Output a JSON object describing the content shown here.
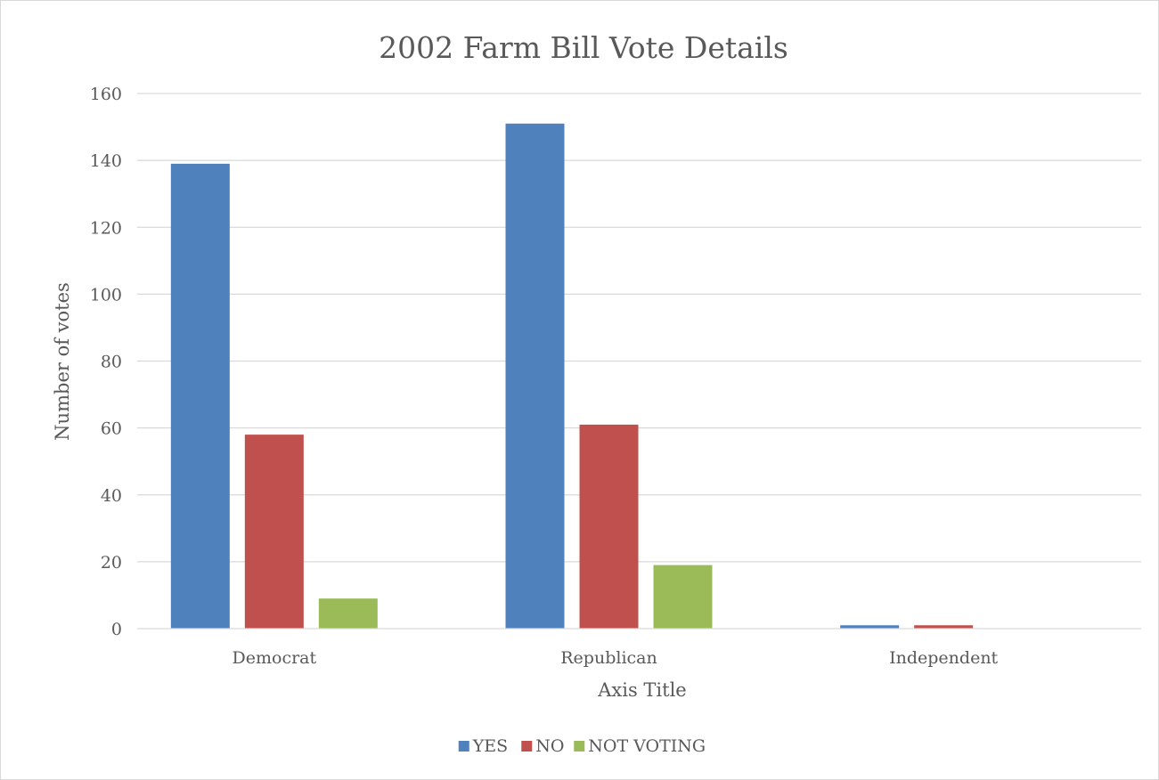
{
  "chart_data": {
    "type": "bar",
    "title": "2002 Farm Bill Vote Details",
    "xlabel": "Axis Title",
    "ylabel": "Number of votes",
    "categories": [
      "Democrat",
      "Republican",
      "Independent"
    ],
    "series": [
      {
        "name": "YES",
        "values": [
          139,
          151,
          1
        ],
        "color": "#4f81bd"
      },
      {
        "name": "NO",
        "values": [
          58,
          61,
          1
        ],
        "color": "#c0504d"
      },
      {
        "name": "NOT VOTING",
        "values": [
          9,
          19,
          0
        ],
        "color": "#9bbb59"
      }
    ],
    "ylim": [
      0,
      160
    ],
    "yticks": [
      0,
      20,
      40,
      60,
      80,
      100,
      120,
      140,
      160
    ],
    "grid": true,
    "legend": "bottom"
  }
}
